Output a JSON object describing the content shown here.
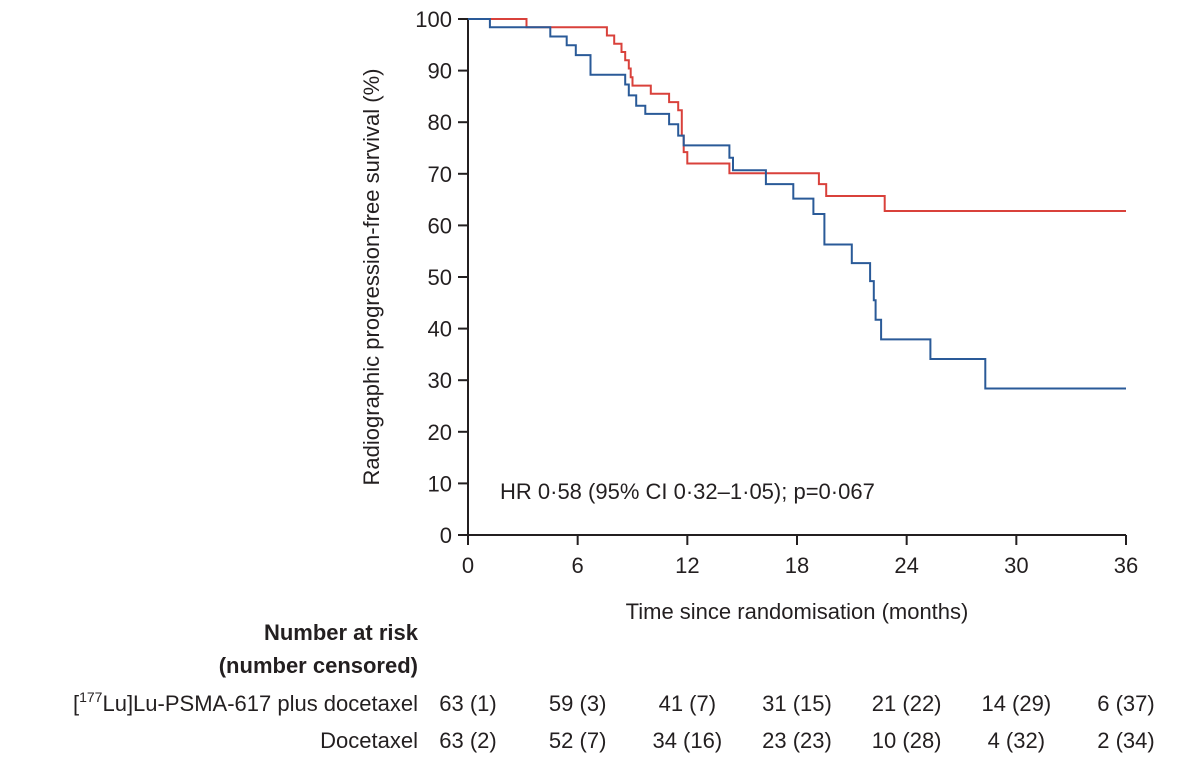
{
  "chart_data": {
    "type": "line",
    "ylabel": "Radiographic progression-free survival (%)",
    "xlabel": "Time since randomisation (months)",
    "xlim": [
      0,
      36
    ],
    "ylim": [
      0,
      100
    ],
    "x_ticks": [
      "0",
      "6",
      "12",
      "18",
      "24",
      "30",
      "36"
    ],
    "y_ticks": [
      "0",
      "10",
      "20",
      "30",
      "40",
      "50",
      "60",
      "70",
      "80",
      "90",
      "100"
    ],
    "grid": false,
    "annotation": "HR 0·58 (95% CI 0·32–1·05); p=0·067",
    "series": [
      {
        "name": "[177Lu]Lu-PSMA-617 plus docetaxel",
        "color": "#d9413b",
        "step": true,
        "points": [
          [
            0,
            100
          ],
          [
            3.2,
            100
          ],
          [
            3.2,
            98.4
          ],
          [
            7.6,
            98.4
          ],
          [
            7.6,
            96.8
          ],
          [
            8.0,
            96.8
          ],
          [
            8.0,
            95.2
          ],
          [
            8.4,
            95.2
          ],
          [
            8.4,
            93.6
          ],
          [
            8.6,
            93.6
          ],
          [
            8.6,
            92.0
          ],
          [
            8.8,
            92.0
          ],
          [
            8.8,
            90.4
          ],
          [
            8.9,
            90.4
          ],
          [
            8.9,
            88.7
          ],
          [
            9.0,
            88.7
          ],
          [
            9.0,
            87.1
          ],
          [
            10.0,
            87.1
          ],
          [
            10.0,
            85.5
          ],
          [
            11.0,
            85.5
          ],
          [
            11.0,
            83.9
          ],
          [
            11.5,
            83.9
          ],
          [
            11.5,
            82.3
          ],
          [
            11.7,
            82.3
          ],
          [
            11.7,
            77.4
          ],
          [
            11.8,
            77.4
          ],
          [
            11.8,
            74.2
          ],
          [
            12.0,
            74.2
          ],
          [
            12.0,
            72.0
          ],
          [
            14.3,
            72.0
          ],
          [
            14.3,
            70.1
          ],
          [
            19.2,
            70.1
          ],
          [
            19.2,
            68.0
          ],
          [
            19.6,
            68.0
          ],
          [
            19.6,
            65.7
          ],
          [
            22.8,
            65.7
          ],
          [
            22.8,
            62.8
          ],
          [
            36,
            62.8
          ]
        ]
      },
      {
        "name": "Docetaxel",
        "color": "#2a5a98",
        "step": true,
        "points": [
          [
            0,
            100
          ],
          [
            1.2,
            100
          ],
          [
            1.2,
            98.4
          ],
          [
            4.5,
            98.4
          ],
          [
            4.5,
            96.6
          ],
          [
            5.4,
            96.6
          ],
          [
            5.4,
            94.9
          ],
          [
            5.9,
            94.9
          ],
          [
            5.9,
            93.0
          ],
          [
            6.7,
            93.0
          ],
          [
            6.7,
            89.2
          ],
          [
            8.6,
            89.2
          ],
          [
            8.6,
            87.3
          ],
          [
            8.8,
            87.3
          ],
          [
            8.8,
            85.2
          ],
          [
            9.2,
            85.2
          ],
          [
            9.2,
            83.2
          ],
          [
            9.7,
            83.2
          ],
          [
            9.7,
            81.6
          ],
          [
            11.0,
            81.6
          ],
          [
            11.0,
            79.6
          ],
          [
            11.5,
            79.6
          ],
          [
            11.5,
            77.4
          ],
          [
            11.8,
            77.4
          ],
          [
            11.8,
            75.5
          ],
          [
            14.3,
            75.5
          ],
          [
            14.3,
            73.1
          ],
          [
            14.5,
            73.1
          ],
          [
            14.5,
            70.7
          ],
          [
            16.3,
            70.7
          ],
          [
            16.3,
            68.0
          ],
          [
            17.8,
            68.0
          ],
          [
            17.8,
            65.2
          ],
          [
            18.9,
            65.2
          ],
          [
            18.9,
            62.2
          ],
          [
            19.5,
            62.2
          ],
          [
            19.5,
            56.3
          ],
          [
            21.0,
            56.3
          ],
          [
            21.0,
            52.7
          ],
          [
            22.0,
            52.7
          ],
          [
            22.0,
            49.2
          ],
          [
            22.2,
            49.2
          ],
          [
            22.2,
            45.5
          ],
          [
            22.3,
            45.5
          ],
          [
            22.3,
            41.7
          ],
          [
            22.6,
            41.7
          ],
          [
            22.6,
            37.9
          ],
          [
            25.3,
            37.9
          ],
          [
            25.3,
            34.1
          ],
          [
            28.3,
            34.1
          ],
          [
            28.3,
            28.4
          ],
          [
            36,
            28.4
          ]
        ]
      }
    ]
  },
  "risk_table": {
    "header_line1": "Number at risk",
    "header_line2": "(number censored)",
    "rows": [
      {
        "label_sup": "177",
        "label_pre": "[",
        "label_post": "Lu]Lu-PSMA-617 plus docetaxel",
        "values": [
          "63 (1)",
          "59 (3)",
          "41 (7)",
          "31 (15)",
          "21 (22)",
          "14 (29)",
          "6 (37)"
        ]
      },
      {
        "label": "Docetaxel",
        "values": [
          "63 (2)",
          "52 (7)",
          "34 (16)",
          "23 (23)",
          "10 (28)",
          "4 (32)",
          "2 (34)"
        ]
      }
    ]
  }
}
